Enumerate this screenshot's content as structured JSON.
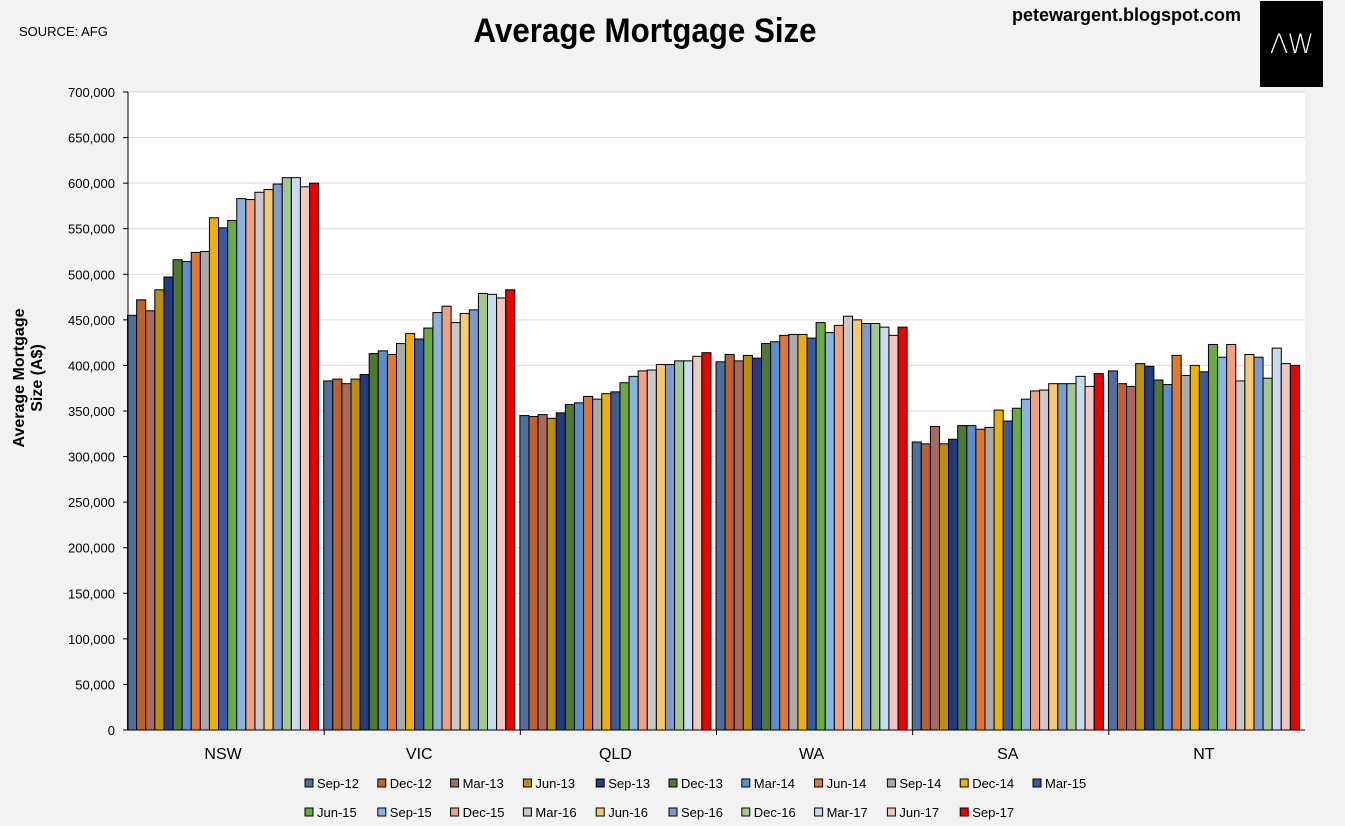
{
  "header": {
    "source": "SOURCE: AFG",
    "title": "Average Mortgage Size",
    "blog": "petewargent.blogspot.com",
    "logo_text": "ΛW"
  },
  "chart_data": {
    "type": "bar",
    "title": "Average Mortgage Size",
    "xlabel": "",
    "ylabel": "Average Mortgage Size (A$)",
    "ylim": [
      0,
      700000
    ],
    "yticks": [
      0,
      50000,
      100000,
      150000,
      200000,
      250000,
      300000,
      350000,
      400000,
      450000,
      500000,
      550000,
      600000,
      650000,
      700000
    ],
    "ytick_labels": [
      "0",
      "50,000",
      "100,000",
      "150,000",
      "200,000",
      "250,000",
      "300,000",
      "350,000",
      "400,000",
      "450,000",
      "500,000",
      "550,000",
      "600,000",
      "650,000",
      "700,000"
    ],
    "grid": true,
    "legend_position": "bottom",
    "categories": [
      "NSW",
      "VIC",
      "QLD",
      "WA",
      "SA",
      "NT"
    ],
    "series": [
      {
        "name": "Sep-12",
        "color": "#4f6fa0",
        "values": [
          455000,
          383000,
          345000,
          404000,
          316000,
          394000
        ]
      },
      {
        "name": "Dec-12",
        "color": "#c0602a",
        "values": [
          472000,
          385000,
          344000,
          412000,
          314000,
          380000
        ]
      },
      {
        "name": "Mar-13",
        "color": "#a86a60",
        "values": [
          460000,
          380000,
          346000,
          405000,
          333000,
          377000
        ]
      },
      {
        "name": "Jun-13",
        "color": "#b8900e",
        "values": [
          483000,
          385000,
          342000,
          411000,
          314000,
          402000
        ]
      },
      {
        "name": "Sep-13",
        "color": "#243a80",
        "values": [
          497000,
          390000,
          348000,
          408000,
          319000,
          399000
        ]
      },
      {
        "name": "Dec-13",
        "color": "#4e7a30",
        "values": [
          516000,
          413000,
          357000,
          424000,
          334000,
          384000
        ]
      },
      {
        "name": "Mar-14",
        "color": "#5b8ed0",
        "values": [
          514000,
          416000,
          359000,
          426000,
          334000,
          379000
        ]
      },
      {
        "name": "Jun-14",
        "color": "#e07830",
        "values": [
          524000,
          412000,
          366000,
          433000,
          330000,
          411000
        ]
      },
      {
        "name": "Sep-14",
        "color": "#aaaaaa",
        "values": [
          525000,
          424000,
          363000,
          434000,
          332000,
          389000
        ]
      },
      {
        "name": "Dec-14",
        "color": "#f0b000",
        "values": [
          562000,
          435000,
          369000,
          434000,
          351000,
          400000
        ]
      },
      {
        "name": "Mar-15",
        "color": "#3a5aa0",
        "values": [
          551000,
          429000,
          371000,
          430000,
          339000,
          393000
        ]
      },
      {
        "name": "Jun-15",
        "color": "#6aaa40",
        "values": [
          559000,
          441000,
          381000,
          447000,
          353000,
          423000
        ]
      },
      {
        "name": "Sep-15",
        "color": "#8ab4e0",
        "values": [
          583000,
          458000,
          388000,
          436000,
          363000,
          409000
        ]
      },
      {
        "name": "Dec-15",
        "color": "#f0a080",
        "values": [
          582000,
          465000,
          394000,
          444000,
          372000,
          423000
        ]
      },
      {
        "name": "Mar-16",
        "color": "#c8c8c8",
        "values": [
          590000,
          447000,
          395000,
          454000,
          373000,
          383000
        ]
      },
      {
        "name": "Jun-16",
        "color": "#f8c870",
        "values": [
          593000,
          457000,
          401000,
          450000,
          380000,
          412000
        ]
      },
      {
        "name": "Sep-16",
        "color": "#7a9ad0",
        "values": [
          599000,
          461000,
          401000,
          446000,
          380000,
          409000
        ]
      },
      {
        "name": "Dec-16",
        "color": "#a0c890",
        "values": [
          606000,
          479000,
          405000,
          446000,
          380000,
          386000
        ]
      },
      {
        "name": "Mar-17",
        "color": "#c8daf0",
        "values": [
          606000,
          478000,
          405000,
          442000,
          388000,
          419000
        ]
      },
      {
        "name": "Jun-17",
        "color": "#f0c8c0",
        "values": [
          596000,
          474000,
          410000,
          433000,
          377000,
          402000
        ]
      },
      {
        "name": "Sep-17",
        "color": "#ee0000",
        "values": [
          600000,
          483000,
          414000,
          442000,
          391000,
          400000
        ]
      }
    ]
  }
}
